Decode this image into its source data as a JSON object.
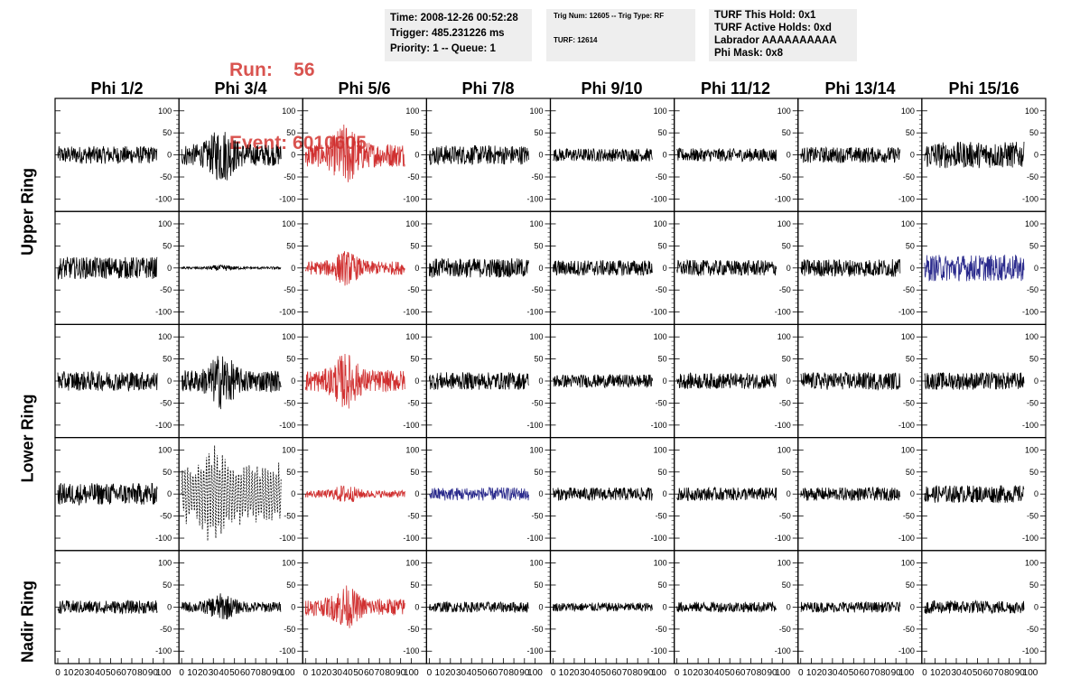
{
  "header": {
    "run_label": "Run:    56",
    "event_label": "Event: 6010605",
    "time": "Time: 2008-12-26 00:52:28",
    "trigger": "Trigger: 485.231226 ms",
    "priority": "Priority: 1 -- Queue: 1",
    "trig_num": "Trig Num: 12605 -- Trig Type: RF",
    "turf": "TURF: 12614",
    "turf_hold": "TURF This Hold: 0x1",
    "turf_active": "TURF Active Holds: 0xd",
    "labrador": "Labrador AAAAAAAAAA",
    "phi_mask": "Phi Mask: 0x8"
  },
  "columns": [
    "Phi 1/2",
    "Phi 3/4",
    "Phi 5/6",
    "Phi 7/8",
    "Phi 9/10",
    "Phi 11/12",
    "Phi 13/14",
    "Phi 15/16"
  ],
  "rows": [
    "Upper Ring",
    "Lower Ring",
    "Nadir Ring"
  ],
  "colors": {
    "black": "#000000",
    "red": "#d03030",
    "blue": "#2a2a8c"
  },
  "chart_data": {
    "type": "line",
    "xlim": [
      0,
      100
    ],
    "ylim": [
      -120,
      120
    ],
    "y_ticks": [
      -100,
      -50,
      0,
      50,
      100
    ],
    "x_tick_labels": [
      "0",
      "10",
      "20",
      "30",
      "40",
      "50",
      "60",
      "70",
      "80",
      "90",
      "100"
    ],
    "panels": [
      [
        "black",
        "black",
        "red",
        "black",
        "black",
        "black",
        "black",
        "black"
      ],
      [
        "black",
        "black-small",
        "red",
        "black",
        "black",
        "black",
        "black",
        "blue"
      ],
      [
        "black",
        "black",
        "red",
        "black",
        "black",
        "black",
        "black",
        "black"
      ],
      [
        "black",
        "black-dashed",
        "red",
        "blue",
        "black",
        "black",
        "black",
        "black"
      ],
      [
        "black",
        "black",
        "red",
        "black",
        "black",
        "black",
        "black",
        "black"
      ]
    ],
    "amplitudes": [
      [
        20,
        45,
        50,
        22,
        15,
        15,
        18,
        30
      ],
      [
        25,
        5,
        28,
        22,
        18,
        18,
        20,
        30
      ],
      [
        22,
        45,
        45,
        20,
        15,
        18,
        20,
        20
      ],
      [
        25,
        60,
        15,
        15,
        15,
        15,
        15,
        20
      ],
      [
        15,
        22,
        35,
        12,
        10,
        12,
        12,
        15
      ]
    ]
  }
}
